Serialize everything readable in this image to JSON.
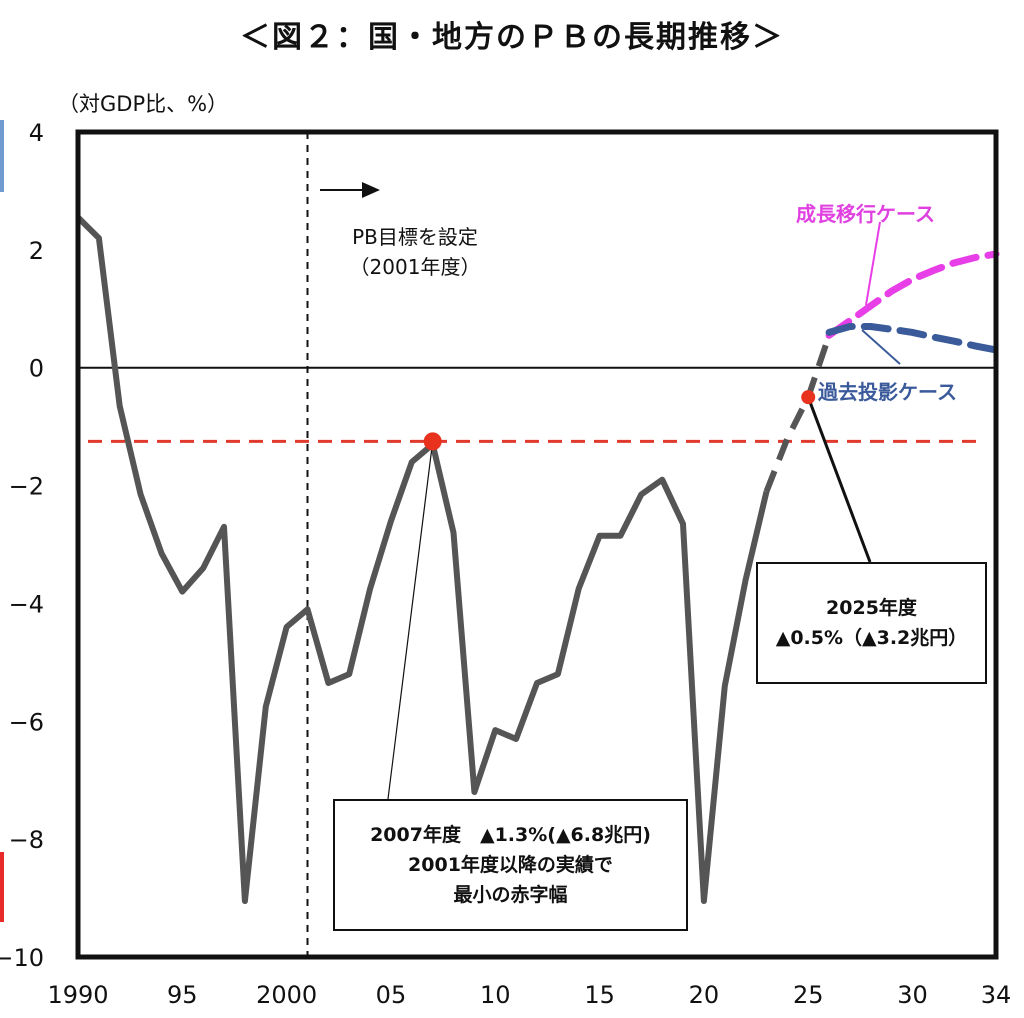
{
  "title": "＜図２：国・地方のＰＢの長期推移＞",
  "unit_label": "（対GDP比、%）",
  "annotations": {
    "target": {
      "line1": "PB目標を設定",
      "line2": "（2001年度）"
    },
    "box2007": {
      "line1": "2007年度　▲1.3%(▲6.8兆円)",
      "line2": "2001年度以降の実績で",
      "line3": "最小の赤字幅"
    },
    "box2025": {
      "line1": "2025年度",
      "line2": "▲0.5%（▲3.2兆円）"
    },
    "growth_case": "成長移行ケース",
    "baseline_case": "過去投影ケース"
  },
  "colors": {
    "actual": "#555555",
    "growth": "#e83ee8",
    "baseline": "#3a5a9a",
    "reference": "#e03a2e",
    "marker": "#e8321e",
    "edge_blue": "#6f9bd0",
    "edge_red": "#e82a2a"
  },
  "chart_data": {
    "type": "line",
    "xlim": [
      1990,
      2034
    ],
    "ylim": [
      -10,
      4
    ],
    "x_ticks": [
      1990,
      1995,
      2000,
      2005,
      2010,
      2015,
      2020,
      2025,
      2030,
      2034
    ],
    "x_tick_labels": [
      "1990",
      "95",
      "2000",
      "05",
      "10",
      "15",
      "20",
      "25",
      "30",
      "34"
    ],
    "y_ticks": [
      4,
      2,
      0,
      -2,
      -4,
      -6,
      -8,
      -10
    ],
    "y_tick_labels": [
      "4",
      "2",
      "0",
      "−2",
      "−4",
      "−6",
      "−8",
      "−10"
    ],
    "actual": {
      "x": [
        1990,
        1991,
        1992,
        1993,
        1994,
        1995,
        1996,
        1997,
        1998,
        1999,
        2000,
        2001,
        2002,
        2003,
        2004,
        2005,
        2006,
        2007,
        2008,
        2009,
        2010,
        2011,
        2012,
        2013,
        2014,
        2015,
        2016,
        2017,
        2018,
        2019,
        2020,
        2021,
        2022,
        2023
      ],
      "y": [
        2.55,
        2.2,
        -0.65,
        -2.15,
        -3.15,
        -3.8,
        -3.4,
        -2.7,
        -9.05,
        -5.75,
        -4.4,
        -4.1,
        -5.35,
        -5.2,
        -3.75,
        -2.6,
        -1.6,
        -1.3,
        -2.8,
        -7.2,
        -6.15,
        -6.3,
        -5.35,
        -5.2,
        -3.75,
        -2.85,
        -2.85,
        -2.15,
        -1.9,
        -2.65,
        -9.05,
        -5.4,
        -3.6,
        -2.1
      ]
    },
    "projection_common": {
      "x": [
        2023,
        2024,
        2025,
        2026
      ],
      "y": [
        -2.1,
        -1.2,
        -0.5,
        0.55
      ]
    },
    "series": [
      {
        "name": "成長移行ケース",
        "x": [
          2026,
          2027,
          2028,
          2029,
          2030,
          2031,
          2032,
          2033,
          2034
        ],
        "y": [
          0.55,
          0.8,
          1.05,
          1.3,
          1.5,
          1.65,
          1.78,
          1.87,
          1.93
        ]
      },
      {
        "name": "過去投影ケース",
        "x": [
          2026,
          2027,
          2028,
          2029,
          2030,
          2031,
          2032,
          2033,
          2034
        ],
        "y": [
          0.6,
          0.7,
          0.7,
          0.65,
          0.6,
          0.52,
          0.45,
          0.37,
          0.3
        ]
      }
    ],
    "reference_line": {
      "y": -1.25
    },
    "target_year_line": {
      "x": 2001
    },
    "markers": [
      {
        "x": 2007,
        "y": -1.25
      },
      {
        "x": 2025,
        "y": -0.5
      }
    ]
  }
}
